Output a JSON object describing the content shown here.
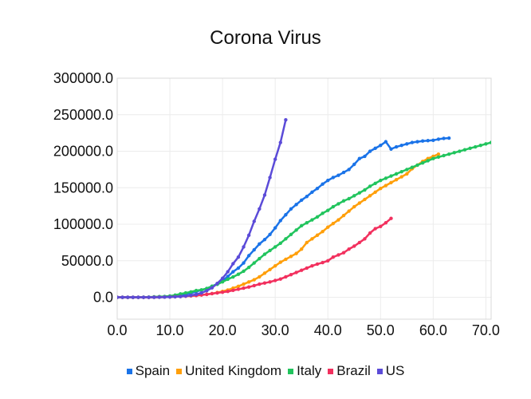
{
  "chart_data": {
    "type": "line",
    "title": "Corona Virus",
    "xlabel": "",
    "ylabel": "",
    "xlim": [
      0,
      71
    ],
    "ylim": [
      -30000,
      300000
    ],
    "x_ticks": [
      0,
      10,
      20,
      30,
      40,
      50,
      60,
      70
    ],
    "x_tick_labels": [
      "0.0",
      "10.0",
      "20.0",
      "30.0",
      "40.0",
      "50.0",
      "60.0",
      "70.0"
    ],
    "y_ticks": [
      0,
      50000,
      100000,
      150000,
      200000,
      250000,
      300000
    ],
    "y_tick_labels": [
      "0.0",
      "50000.0",
      "100000.0",
      "150000.0",
      "200000.0",
      "250000.0",
      "300000.0"
    ],
    "grid": true,
    "legend_position": "bottom",
    "series": [
      {
        "name": "Spain",
        "color": "#1a73e8",
        "x": [
          0,
          1,
          2,
          3,
          4,
          5,
          6,
          7,
          8,
          9,
          10,
          11,
          12,
          13,
          14,
          15,
          16,
          17,
          18,
          19,
          20,
          21,
          22,
          23,
          24,
          25,
          26,
          27,
          28,
          29,
          30,
          31,
          32,
          33,
          34,
          35,
          36,
          37,
          38,
          39,
          40,
          41,
          42,
          43,
          44,
          45,
          46,
          47,
          48,
          49,
          50,
          51,
          52,
          53,
          54,
          55,
          56,
          57,
          58,
          59,
          60,
          61,
          62,
          63
        ],
        "y": [
          0,
          0,
          0,
          0,
          0,
          0,
          0,
          200,
          600,
          900,
          1500,
          2300,
          3000,
          4200,
          5800,
          7800,
          10000,
          12000,
          15000,
          18500,
          23000,
          28500,
          35000,
          40000,
          47000,
          57000,
          65000,
          73000,
          79000,
          86000,
          95000,
          105000,
          113000,
          121000,
          127000,
          133000,
          138000,
          144000,
          149000,
          155000,
          160000,
          164000,
          167000,
          171000,
          175000,
          182000,
          190000,
          193000,
          200000,
          204000,
          208000,
          213000,
          203000,
          206000,
          208000,
          210000,
          212000,
          213000,
          214000,
          214500,
          215000,
          216500,
          217500,
          218000
        ]
      },
      {
        "name": "United Kingdom",
        "color": "#ff9f0a",
        "x": [
          0,
          1,
          2,
          3,
          4,
          5,
          6,
          7,
          8,
          9,
          10,
          11,
          12,
          13,
          14,
          15,
          16,
          17,
          18,
          19,
          20,
          21,
          22,
          23,
          24,
          25,
          26,
          27,
          28,
          29,
          30,
          31,
          32,
          33,
          34,
          35,
          36,
          37,
          38,
          39,
          40,
          41,
          42,
          43,
          44,
          45,
          46,
          47,
          48,
          49,
          50,
          51,
          52,
          53,
          54,
          55,
          56,
          57,
          58,
          59,
          60,
          61
        ],
        "y": [
          0,
          0,
          0,
          0,
          0,
          0,
          0,
          0,
          100,
          300,
          500,
          800,
          1200,
          1600,
          2000,
          2500,
          3200,
          4000,
          5000,
          6500,
          8000,
          10000,
          12500,
          15000,
          18000,
          21000,
          24000,
          28000,
          33000,
          38000,
          43000,
          48000,
          52000,
          56000,
          60000,
          66000,
          75000,
          80000,
          85000,
          90000,
          96000,
          101000,
          106000,
          112000,
          118000,
          124000,
          129000,
          134000,
          139000,
          144000,
          149000,
          153000,
          157000,
          161000,
          165000,
          169000,
          176000,
          181000,
          186000,
          190000,
          193000,
          196000
        ]
      },
      {
        "name": "Italy",
        "color": "#21c45d",
        "x": [
          0,
          1,
          2,
          3,
          4,
          5,
          6,
          7,
          8,
          9,
          10,
          11,
          12,
          13,
          14,
          15,
          16,
          17,
          18,
          19,
          20,
          21,
          22,
          23,
          24,
          25,
          26,
          27,
          28,
          29,
          30,
          31,
          32,
          33,
          34,
          35,
          36,
          37,
          38,
          39,
          40,
          41,
          42,
          43,
          44,
          45,
          46,
          47,
          48,
          49,
          50,
          51,
          52,
          53,
          54,
          55,
          56,
          57,
          58,
          59,
          60,
          61,
          62,
          63,
          64,
          65,
          66,
          67,
          68,
          69,
          70,
          71
        ],
        "y": [
          0,
          0,
          0,
          0,
          0,
          100,
          300,
          650,
          900,
          1100,
          1700,
          3000,
          4600,
          6000,
          7400,
          9200,
          10100,
          12000,
          15100,
          17700,
          21200,
          24700,
          27900,
          31500,
          35700,
          41000,
          47000,
          53000,
          59000,
          64000,
          69000,
          74000,
          80000,
          86000,
          92000,
          98000,
          102000,
          106000,
          110000,
          115000,
          119000,
          124000,
          128000,
          132000,
          135000,
          139000,
          143000,
          147000,
          152000,
          156000,
          160000,
          163000,
          166000,
          169000,
          172000,
          175000,
          178000,
          181000,
          184000,
          187000,
          190000,
          192000,
          194000,
          196000,
          198000,
          200000,
          202000,
          204000,
          206000,
          208000,
          210000,
          212000
        ]
      },
      {
        "name": "Brazil",
        "color": "#f2305e",
        "x": [
          0,
          1,
          2,
          3,
          4,
          5,
          6,
          7,
          8,
          9,
          10,
          11,
          12,
          13,
          14,
          15,
          16,
          17,
          18,
          19,
          20,
          21,
          22,
          23,
          24,
          25,
          26,
          27,
          28,
          29,
          30,
          31,
          32,
          33,
          34,
          35,
          36,
          37,
          38,
          39,
          40,
          41,
          42,
          43,
          44,
          45,
          46,
          47,
          48,
          49,
          50,
          51,
          52
        ],
        "y": [
          0,
          0,
          0,
          0,
          0,
          0,
          0,
          100,
          200,
          300,
          500,
          800,
          1100,
          1500,
          2000,
          2500,
          3200,
          4000,
          5000,
          6000,
          7000,
          8000,
          9500,
          11000,
          12500,
          14000,
          16000,
          18000,
          19500,
          21000,
          23000,
          25000,
          28000,
          31000,
          34000,
          37000,
          40000,
          43000,
          45500,
          47500,
          50000,
          55000,
          58000,
          61000,
          66000,
          70000,
          75000,
          80000,
          88000,
          94000,
          97000,
          102000,
          108000
        ]
      },
      {
        "name": "US",
        "color": "#5b4bd8",
        "x": [
          0,
          1,
          2,
          3,
          4,
          5,
          6,
          7,
          8,
          9,
          10,
          11,
          12,
          13,
          14,
          15,
          16,
          17,
          18,
          19,
          20,
          21,
          22,
          23,
          24,
          25,
          26,
          27,
          28,
          29,
          30,
          31,
          32
        ],
        "y": [
          0,
          0,
          0,
          0,
          0,
          0,
          0,
          0,
          100,
          200,
          400,
          700,
          1100,
          1700,
          2700,
          4000,
          6000,
          9000,
          13000,
          19000,
          26000,
          35000,
          46000,
          55000,
          69000,
          85000,
          104000,
          121000,
          140000,
          164000,
          189000,
          212000,
          243000
        ]
      }
    ]
  }
}
